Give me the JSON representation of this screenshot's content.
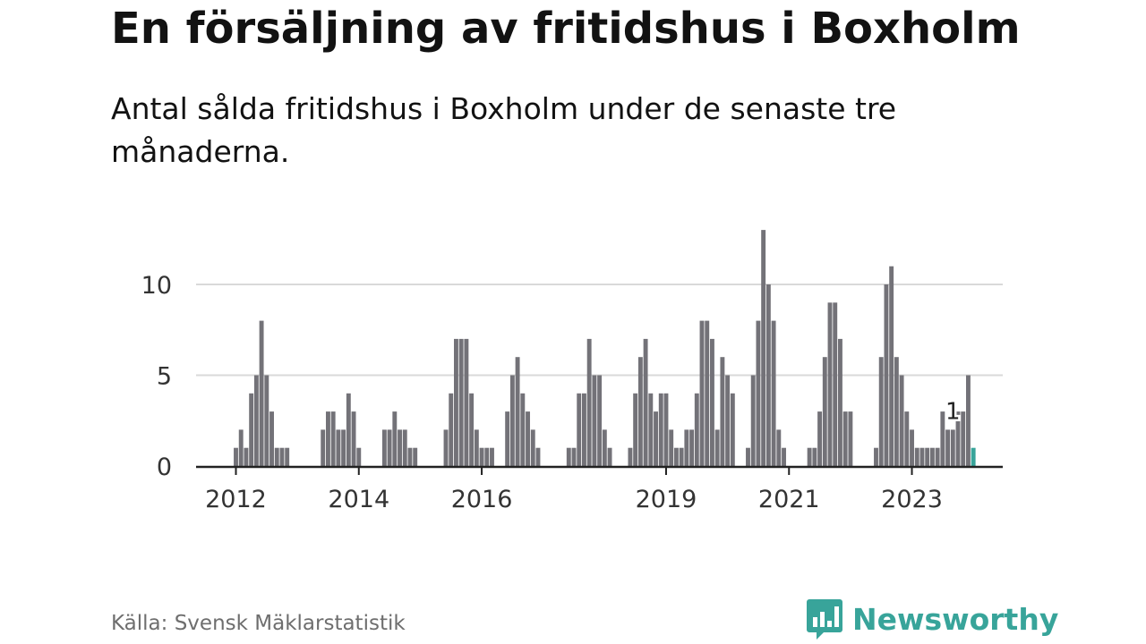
{
  "header": {
    "title": "En försäljning av fritidshus i Boxholm",
    "subtitle": "Antal sålda fritidshus i Boxholm under de senaste tre månaderna."
  },
  "footer": {
    "source": "Källa: Svensk Mäklarstatistik",
    "brand": "Newsworthy",
    "brand_icon": "bar-chart-speech-bubble-icon"
  },
  "colors": {
    "bar": "#737278",
    "highlight": "#38a49a",
    "grid": "#d9d9d9",
    "axis": "#222222",
    "brand": "#38a49a"
  },
  "chart_data": {
    "type": "bar",
    "title": "En försäljning av fritidshus i Boxholm",
    "subtitle": "Antal sålda fritidshus i Boxholm under de senaste tre månaderna.",
    "xlabel": "",
    "ylabel": "",
    "ylim": [
      0,
      13
    ],
    "yticks": [
      0,
      5,
      10
    ],
    "x_tick_labels": [
      "2012",
      "2014",
      "2016",
      "2019",
      "2021",
      "2023"
    ],
    "x_tick_bar_index": [
      7,
      31,
      55,
      91,
      115,
      139
    ],
    "grid": true,
    "legend": "none",
    "annotation": {
      "bar_index": 147,
      "label": "1"
    },
    "values": [
      0,
      0,
      0,
      0,
      0,
      0,
      0,
      1,
      2,
      1,
      4,
      5,
      8,
      5,
      3,
      1,
      1,
      1,
      0,
      0,
      0,
      0,
      0,
      0,
      2,
      3,
      3,
      2,
      2,
      4,
      3,
      1,
      0,
      0,
      0,
      0,
      2,
      2,
      3,
      2,
      2,
      1,
      1,
      0,
      0,
      0,
      0,
      0,
      2,
      4,
      7,
      7,
      7,
      4,
      2,
      1,
      1,
      1,
      0,
      0,
      3,
      5,
      6,
      4,
      3,
      2,
      1,
      0,
      0,
      0,
      0,
      0,
      1,
      1,
      4,
      4,
      7,
      5,
      5,
      2,
      1,
      0,
      0,
      0,
      1,
      4,
      6,
      7,
      4,
      3,
      4,
      4,
      2,
      1,
      1,
      2,
      2,
      4,
      8,
      8,
      7,
      2,
      6,
      5,
      4,
      0,
      0,
      1,
      5,
      8,
      13,
      10,
      8,
      2,
      1,
      0,
      0,
      0,
      0,
      1,
      1,
      3,
      6,
      9,
      9,
      7,
      3,
      3,
      0,
      0,
      0,
      0,
      1,
      6,
      10,
      11,
      6,
      5,
      3,
      2,
      1,
      1,
      1,
      1,
      1,
      3,
      2,
      2,
      3,
      3,
      5,
      1
    ]
  }
}
